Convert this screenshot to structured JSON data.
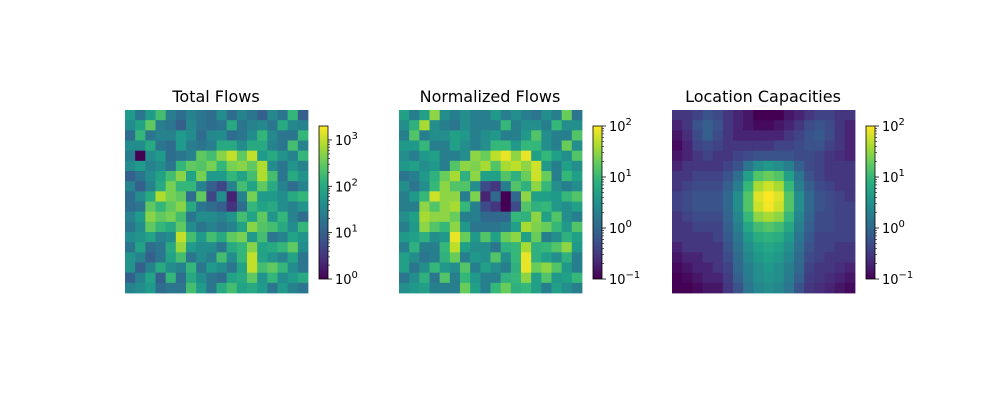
{
  "chart_data": [
    {
      "type": "heatmap",
      "title": "Total Flows",
      "colormap": "viridis",
      "color_scale": "log",
      "clim": [
        1,
        2000
      ],
      "colorbar_ticks": [
        {
          "value": 1,
          "base": "10",
          "exp": "0"
        },
        {
          "value": 10,
          "base": "10",
          "exp": "1"
        },
        {
          "value": 100,
          "base": "10",
          "exp": "2"
        },
        {
          "value": 1000,
          "base": "10",
          "exp": "3"
        }
      ],
      "axes_visible": false,
      "grid": [
        [
          60,
          20,
          60,
          200,
          25,
          15,
          30,
          20,
          15,
          40,
          15,
          30,
          20,
          10,
          35,
          20,
          150,
          10
        ],
        [
          40,
          80,
          300,
          25,
          20,
          10,
          35,
          20,
          15,
          20,
          100,
          20,
          30,
          35,
          20,
          100,
          35,
          30
        ],
        [
          15,
          150,
          20,
          30,
          30,
          60,
          40,
          15,
          35,
          40,
          15,
          20,
          40,
          150,
          35,
          20,
          20,
          150
        ],
        [
          40,
          40,
          100,
          20,
          15,
          60,
          25,
          20,
          25,
          100,
          100,
          40,
          100,
          100,
          30,
          20,
          200,
          30
        ],
        [
          25,
          1,
          40,
          60,
          15,
          20,
          30,
          300,
          200,
          500,
          1000,
          300,
          1000,
          60,
          100,
          50,
          30,
          150
        ],
        [
          40,
          60,
          30,
          40,
          20,
          150,
          300,
          250,
          400,
          150,
          400,
          500,
          300,
          800,
          40,
          20,
          50,
          30
        ],
        [
          10,
          20,
          40,
          80,
          200,
          500,
          80,
          400,
          60,
          60,
          150,
          80,
          200,
          800,
          200,
          20,
          100,
          50
        ],
        [
          30,
          10,
          30,
          100,
          400,
          150,
          150,
          30,
          10,
          5,
          30,
          200,
          80,
          300,
          100,
          30,
          15,
          30
        ],
        [
          15,
          40,
          100,
          800,
          400,
          300,
          15,
          300,
          5,
          40,
          2,
          30,
          400,
          60,
          60,
          40,
          100,
          150
        ],
        [
          15,
          20,
          300,
          150,
          300,
          500,
          100,
          20,
          15,
          10,
          3,
          15,
          150,
          80,
          100,
          40,
          30,
          50
        ],
        [
          30,
          60,
          500,
          300,
          400,
          200,
          20,
          40,
          40,
          30,
          50,
          200,
          80,
          300,
          50,
          150,
          30,
          15
        ],
        [
          20,
          40,
          300,
          150,
          100,
          300,
          40,
          20,
          30,
          20,
          30,
          80,
          500,
          250,
          200,
          100,
          40,
          150
        ],
        [
          40,
          50,
          80,
          30,
          40,
          1000,
          200,
          60,
          200,
          100,
          300,
          400,
          60,
          200,
          20,
          30,
          80,
          50
        ],
        [
          20,
          80,
          15,
          20,
          100,
          600,
          60,
          40,
          40,
          20,
          100,
          150,
          500,
          80,
          100,
          150,
          300,
          40
        ],
        [
          50,
          30,
          10,
          20,
          80,
          200,
          20,
          40,
          25,
          200,
          40,
          150,
          1000,
          80,
          50,
          30,
          80,
          20
        ],
        [
          50,
          10,
          30,
          100,
          40,
          30,
          150,
          20,
          60,
          40,
          20,
          80,
          1000,
          200,
          300,
          150,
          40,
          20
        ],
        [
          10,
          30,
          80,
          10,
          150,
          15,
          100,
          40,
          20,
          15,
          80,
          100,
          300,
          50,
          150,
          40,
          60,
          100
        ],
        [
          30,
          40,
          60,
          15,
          20,
          20,
          200,
          60,
          20,
          100,
          200,
          80,
          100,
          60,
          20,
          60,
          30,
          20
        ]
      ]
    },
    {
      "type": "heatmap",
      "title": "Normalized Flows",
      "colormap": "viridis",
      "color_scale": "log",
      "clim": [
        0.1,
        100
      ],
      "colorbar_ticks": [
        {
          "value": 0.1,
          "base": "10",
          "exp": "−1"
        },
        {
          "value": 1,
          "base": "10",
          "exp": "0"
        },
        {
          "value": 10,
          "base": "10",
          "exp": "1"
        },
        {
          "value": 100,
          "base": "10",
          "exp": "2"
        }
      ],
      "axes_visible": false,
      "grid": [
        [
          5,
          2,
          5,
          30,
          3,
          2,
          3,
          2,
          2,
          4,
          2,
          3,
          2,
          1.5,
          3,
          2,
          20,
          1.5
        ],
        [
          3,
          8,
          40,
          3,
          2,
          1.5,
          3,
          2,
          2,
          2,
          10,
          2,
          3,
          3,
          2,
          10,
          3,
          3
        ],
        [
          2,
          15,
          2,
          3,
          3,
          5,
          4,
          2,
          3,
          4,
          2,
          2,
          4,
          15,
          3,
          2,
          2,
          15
        ],
        [
          4,
          4,
          10,
          2,
          2,
          5,
          3,
          2,
          3,
          10,
          10,
          4,
          10,
          10,
          3,
          2,
          20,
          3
        ],
        [
          3,
          2,
          4,
          5,
          2,
          2,
          3,
          30,
          20,
          50,
          80,
          30,
          80,
          5,
          10,
          5,
          3,
          15
        ],
        [
          4,
          5,
          3,
          4,
          2,
          15,
          30,
          25,
          40,
          15,
          40,
          50,
          30,
          60,
          4,
          2,
          5,
          3
        ],
        [
          1.5,
          2,
          4,
          8,
          20,
          40,
          8,
          30,
          5,
          5,
          15,
          8,
          20,
          60,
          20,
          2,
          10,
          5
        ],
        [
          3,
          1.5,
          3,
          10,
          30,
          15,
          15,
          3,
          0.5,
          0.3,
          2,
          15,
          8,
          30,
          10,
          3,
          2,
          3
        ],
        [
          2,
          4,
          10,
          60,
          30,
          30,
          2,
          25,
          0.2,
          1,
          0.1,
          1,
          30,
          5,
          5,
          4,
          10,
          15
        ],
        [
          2,
          2,
          30,
          15,
          30,
          40,
          10,
          2,
          0.5,
          0.3,
          0.1,
          0.5,
          15,
          8,
          10,
          4,
          3,
          5
        ],
        [
          3,
          5,
          40,
          30,
          30,
          20,
          2,
          2,
          1,
          1,
          1,
          10,
          8,
          30,
          5,
          15,
          3,
          2
        ],
        [
          2,
          4,
          30,
          15,
          10,
          30,
          4,
          1.5,
          1.5,
          1.5,
          2,
          5,
          40,
          25,
          20,
          10,
          4,
          15
        ],
        [
          4,
          5,
          8,
          3,
          4,
          80,
          20,
          4,
          15,
          5,
          20,
          30,
          5,
          20,
          2,
          3,
          8,
          5
        ],
        [
          2,
          8,
          2,
          2,
          10,
          50,
          5,
          3,
          3,
          1.5,
          8,
          10,
          40,
          8,
          10,
          15,
          30,
          4
        ],
        [
          5,
          3,
          1.5,
          2,
          8,
          20,
          2,
          4,
          3,
          15,
          3,
          10,
          80,
          8,
          5,
          3,
          8,
          2
        ],
        [
          5,
          1.5,
          3,
          10,
          4,
          3,
          15,
          2,
          5,
          3,
          2,
          8,
          80,
          20,
          30,
          15,
          4,
          2
        ],
        [
          1.5,
          3,
          8,
          1.5,
          15,
          2,
          10,
          4,
          2,
          2,
          8,
          10,
          30,
          5,
          15,
          4,
          5,
          10
        ],
        [
          3,
          4,
          5,
          2,
          2,
          2,
          20,
          5,
          2,
          10,
          20,
          8,
          10,
          5,
          2,
          5,
          3,
          2
        ]
      ]
    },
    {
      "type": "heatmap",
      "title": "Location Capacities",
      "colormap": "viridis",
      "color_scale": "log",
      "clim": [
        0.1,
        100
      ],
      "colorbar_ticks": [
        {
          "value": 0.1,
          "base": "10",
          "exp": "−1"
        },
        {
          "value": 1,
          "base": "10",
          "exp": "0"
        },
        {
          "value": 10,
          "base": "10",
          "exp": "1"
        },
        {
          "value": 100,
          "base": "10",
          "exp": "2"
        }
      ],
      "axes_visible": false,
      "grid": [
        [
          0.3,
          0.3,
          0.4,
          0.6,
          0.5,
          0.3,
          0.2,
          0.15,
          0.1,
          0.1,
          0.1,
          0.15,
          0.2,
          0.3,
          0.4,
          0.4,
          0.3,
          0.3
        ],
        [
          0.2,
          0.3,
          0.6,
          0.8,
          0.6,
          0.3,
          0.2,
          0.15,
          0.12,
          0.12,
          0.15,
          0.2,
          0.3,
          0.5,
          0.6,
          0.5,
          0.3,
          0.2
        ],
        [
          0.15,
          0.25,
          0.5,
          0.8,
          0.5,
          0.3,
          0.2,
          0.2,
          0.2,
          0.2,
          0.2,
          0.3,
          0.4,
          0.6,
          0.7,
          0.5,
          0.3,
          0.2
        ],
        [
          0.12,
          0.2,
          0.4,
          0.5,
          0.4,
          0.3,
          0.3,
          0.3,
          0.3,
          0.3,
          0.4,
          0.4,
          0.5,
          0.6,
          0.6,
          0.4,
          0.3,
          0.2
        ],
        [
          0.15,
          0.2,
          0.3,
          0.4,
          0.3,
          0.3,
          0.4,
          0.5,
          0.6,
          0.6,
          0.6,
          0.6,
          0.5,
          0.5,
          0.4,
          0.3,
          0.25,
          0.2
        ],
        [
          0.2,
          0.3,
          0.3,
          0.3,
          0.3,
          0.4,
          0.6,
          1.5,
          3,
          4,
          3,
          2,
          0.8,
          0.5,
          0.4,
          0.3,
          0.3,
          0.3
        ],
        [
          0.3,
          0.3,
          0.4,
          0.4,
          0.4,
          0.6,
          1.2,
          5,
          15,
          20,
          15,
          5,
          1.5,
          0.6,
          0.4,
          0.3,
          0.3,
          0.3
        ],
        [
          0.3,
          0.4,
          0.5,
          0.5,
          0.5,
          0.8,
          2,
          10,
          40,
          60,
          40,
          10,
          2,
          0.8,
          0.5,
          0.4,
          0.3,
          0.3
        ],
        [
          0.4,
          0.5,
          0.6,
          0.6,
          0.6,
          1,
          3,
          15,
          70,
          100,
          70,
          15,
          3,
          1,
          0.6,
          0.5,
          0.4,
          0.3
        ],
        [
          0.4,
          0.5,
          0.6,
          0.6,
          0.6,
          1,
          3,
          15,
          60,
          90,
          60,
          15,
          3,
          1,
          0.6,
          0.5,
          0.4,
          0.4
        ],
        [
          0.3,
          0.4,
          0.5,
          0.5,
          0.5,
          0.9,
          2.5,
          10,
          30,
          40,
          30,
          10,
          2.5,
          0.9,
          0.5,
          0.5,
          0.4,
          0.4
        ],
        [
          0.3,
          0.3,
          0.4,
          0.4,
          0.4,
          0.8,
          2,
          6,
          12,
          15,
          12,
          6,
          2,
          0.8,
          0.5,
          0.5,
          0.4,
          0.4
        ],
        [
          0.3,
          0.3,
          0.3,
          0.3,
          0.4,
          0.7,
          1.5,
          4,
          7,
          8,
          7,
          4,
          1.5,
          0.7,
          0.4,
          0.4,
          0.4,
          0.4
        ],
        [
          0.2,
          0.3,
          0.3,
          0.3,
          0.3,
          0.6,
          1.3,
          3,
          5,
          6,
          5,
          3,
          1.3,
          0.6,
          0.4,
          0.4,
          0.3,
          0.3
        ],
        [
          0.15,
          0.2,
          0.2,
          0.3,
          0.3,
          0.5,
          1.1,
          2.5,
          4,
          5,
          4,
          2.5,
          1.1,
          0.5,
          0.4,
          0.3,
          0.3,
          0.3
        ],
        [
          0.12,
          0.15,
          0.2,
          0.2,
          0.3,
          0.4,
          1,
          2,
          3,
          4,
          3,
          2,
          1,
          0.4,
          0.3,
          0.3,
          0.25,
          0.2
        ],
        [
          0.1,
          0.12,
          0.15,
          0.2,
          0.2,
          0.35,
          0.8,
          1.8,
          3,
          3.5,
          3,
          1.8,
          0.8,
          0.35,
          0.3,
          0.25,
          0.2,
          0.15
        ],
        [
          0.1,
          0.1,
          0.12,
          0.15,
          0.15,
          0.3,
          0.6,
          1.5,
          2.5,
          3,
          2.5,
          1.5,
          0.6,
          0.3,
          0.25,
          0.2,
          0.15,
          0.12
        ]
      ]
    }
  ]
}
